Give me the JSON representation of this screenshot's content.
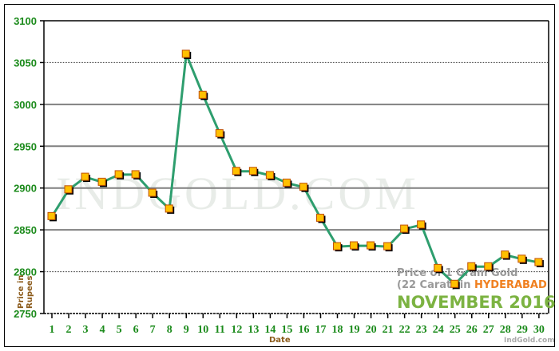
{
  "chart_data": {
    "type": "line",
    "title": "Price of 1 Gram Gold (22 Carat) in HYDERABAD",
    "subtitle": "NOVEMBER 2016",
    "xlabel": "Date",
    "ylabel": "Price in Rupees",
    "categories": [
      "1",
      "2",
      "3",
      "4",
      "5",
      "6",
      "7",
      "8",
      "9",
      "10",
      "11",
      "12",
      "13",
      "14",
      "15",
      "16",
      "17",
      "18",
      "19",
      "20",
      "21",
      "22",
      "23",
      "24",
      "25",
      "26",
      "27",
      "28",
      "29",
      "30"
    ],
    "series": [
      {
        "name": "22 Carat Gold Price (1 gram)",
        "values": [
          2866,
          2898,
          2913,
          2907,
          2916,
          2916,
          2894,
          2875,
          3060,
          3011,
          2965,
          2920,
          2920,
          2915,
          2906,
          2901,
          2864,
          2830,
          2831,
          2831,
          2830,
          2851,
          2856,
          2804,
          2785,
          2806,
          2806,
          2820,
          2815,
          2811
        ]
      }
    ],
    "yticks": [
      2750,
      2800,
      2850,
      2900,
      2950,
      3000,
      3050,
      3100
    ],
    "ylim": [
      2750,
      3100
    ],
    "grid": true,
    "legend": "none",
    "colors": {
      "line": "#2e9e6e",
      "marker_fill": "#ffc000",
      "marker_edge": "#c05000",
      "tick_text": "#1a8a1a",
      "axis_label": "#8b5a1a"
    }
  },
  "caption": {
    "line1": "Price of 1 Gram Gold",
    "line2_prefix": "(22 Carat) in ",
    "city": "HYDERABAD",
    "month_year": "NOVEMBER 2016"
  },
  "watermark": "INDGOLD.COM",
  "credit": "IndGold.com",
  "axis": {
    "xlabel": "Date",
    "ylabel_line1": "Price in",
    "ylabel_line2": "Rupees"
  }
}
